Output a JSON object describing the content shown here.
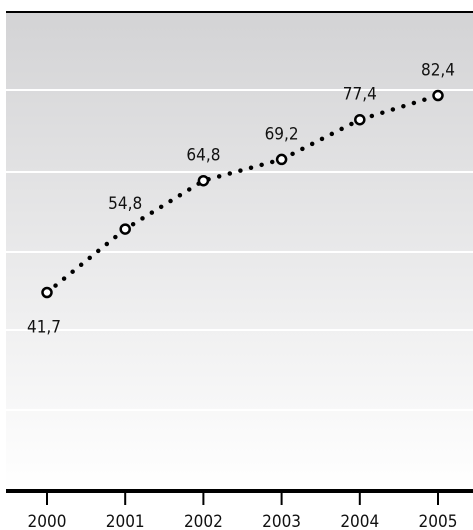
{
  "chart_data": {
    "type": "line",
    "title": "",
    "xlabel": "",
    "ylabel": "",
    "x": [
      "2000",
      "2001",
      "2002",
      "2003",
      "2004",
      "2005"
    ],
    "series": [
      {
        "values": [
          41.7,
          54.8,
          64.8,
          69.2,
          77.4,
          82.4
        ],
        "labels": [
          "41,7",
          "54,8",
          "64,8",
          "69,2",
          "77,4",
          "82,4"
        ]
      }
    ],
    "ylim": [
      30,
      90
    ],
    "grid": true,
    "legend": "none",
    "line_style": "dotted",
    "marker": "open-circle",
    "colors": {
      "line": "#000000",
      "grid": "#ffffff",
      "background_top": "#d3d3d5",
      "background_bottom": "#ffffff"
    }
  }
}
